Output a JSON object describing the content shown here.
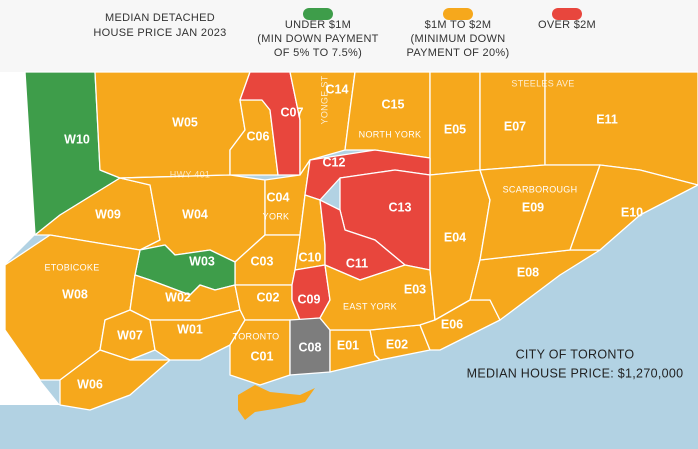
{
  "legend": {
    "title": [
      "MEDIAN DETACHED",
      "HOUSE PRICE JAN 2023"
    ],
    "items": [
      {
        "color": "#3e9d4a",
        "lines": [
          "UNDER $1M",
          "(MIN DOWN PAYMENT",
          "OF 5% TO 7.5%)"
        ]
      },
      {
        "color": "#f6a81c",
        "lines": [
          "$1M TO $2M",
          "(MINIMUM DOWN",
          "PAYMENT OF 20%)"
        ]
      },
      {
        "color": "#e8463d",
        "lines": [
          "OVER $2M"
        ]
      }
    ]
  },
  "districts": [
    {
      "label": "W10",
      "band": 0
    },
    {
      "label": "W05",
      "band": 1
    },
    {
      "label": "C06",
      "band": 1
    },
    {
      "label": "C07",
      "band": 2
    },
    {
      "label": "C14",
      "band": 1
    },
    {
      "label": "C15",
      "band": 1
    },
    {
      "label": "E05",
      "band": 1
    },
    {
      "label": "E07",
      "band": 1
    },
    {
      "label": "E11",
      "band": 1
    },
    {
      "label": "W09",
      "band": 1
    },
    {
      "label": "W04",
      "band": 1
    },
    {
      "label": "C04",
      "band": 1
    },
    {
      "label": "C12",
      "band": 2
    },
    {
      "label": "C13",
      "band": 2
    },
    {
      "label": "C10",
      "band": 1
    },
    {
      "label": "C11",
      "band": 2
    },
    {
      "label": "C03",
      "band": 1
    },
    {
      "label": "W03",
      "band": 0
    },
    {
      "label": "W08",
      "band": 1
    },
    {
      "label": "W02",
      "band": 1
    },
    {
      "label": "C02",
      "band": 1
    },
    {
      "label": "C09",
      "band": 2
    },
    {
      "label": "W07",
      "band": 1
    },
    {
      "label": "W01",
      "band": 1
    },
    {
      "label": "C01",
      "band": 1
    },
    {
      "label": "W06",
      "band": 1
    },
    {
      "label": "C08",
      "color": "#7d7d7d"
    },
    {
      "label": "E01",
      "band": 1
    },
    {
      "label": "E02",
      "band": 1
    },
    {
      "label": "E03",
      "band": 1
    },
    {
      "label": "E04",
      "band": 1
    },
    {
      "label": "E06",
      "band": 1
    },
    {
      "label": "E08",
      "band": 1
    },
    {
      "label": "E09",
      "band": 1
    },
    {
      "label": "E10",
      "band": 1
    }
  ],
  "areas": [
    "NORTH YORK",
    "SCARBOROUGH",
    "YORK",
    "ETOBICOKE",
    "EAST YORK",
    "TORONTO",
    "HWY 401",
    "YONGE ST",
    "STEELES AVE"
  ],
  "summary": [
    "CITY OF TORONTO",
    "MEDIAN HOUSE PRICE: $1,270,000"
  ]
}
